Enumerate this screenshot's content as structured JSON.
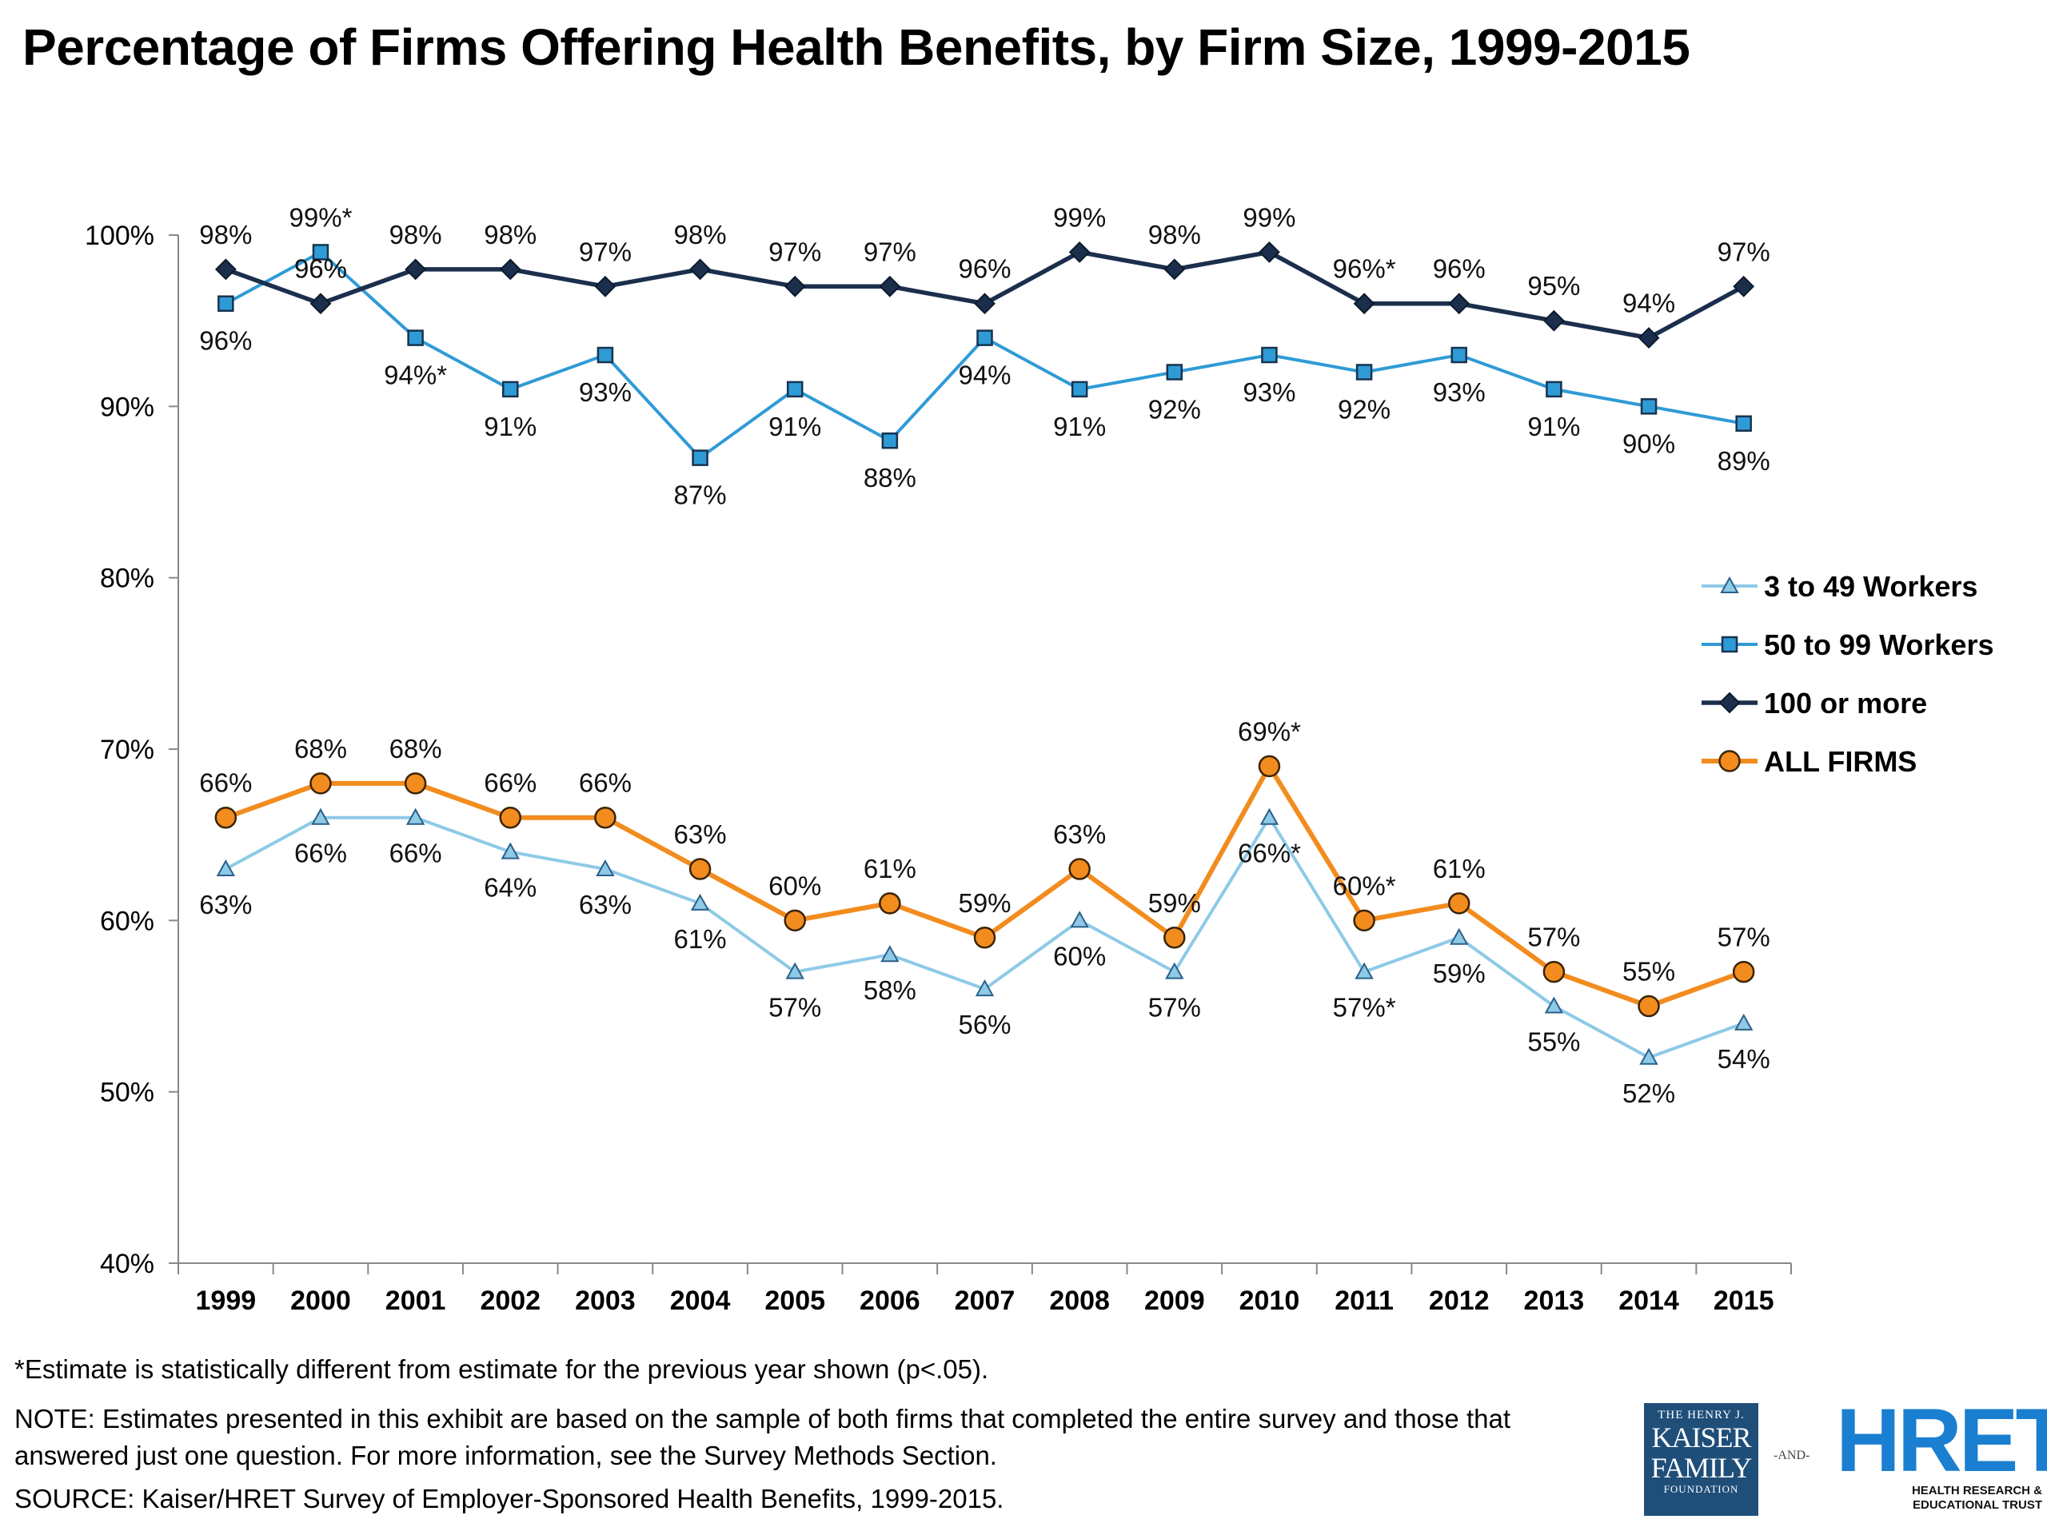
{
  "title": "Percentage of Firms Offering Health Benefits, by Firm Size, 1999-2015",
  "footnote": "*Estimate is statistically different from estimate for the previous year shown (p<.05).",
  "note": "NOTE: Estimates presented in this exhibit are based on the sample of both firms that completed the entire survey and those that answered just one question. For more information, see the Survey Methods Section.",
  "source": "SOURCE:  Kaiser/HRET Survey of Employer-Sponsored Health Benefits, 1999-2015.",
  "logos": {
    "kff_line1": "THE HENRY J.",
    "kff_line2": "KAISER",
    "kff_line3": "FAMILY",
    "kff_line4": "FOUNDATION",
    "and": "-AND-",
    "hret_big": "HRET",
    "hret_line1": "HEALTH RESEARCH &",
    "hret_line2": "EDUCATIONAL TRUST"
  },
  "chart_data": {
    "type": "line",
    "title": "Percentage of Firms Offering Health Benefits, by Firm Size, 1999-2015",
    "xlabel": "",
    "ylabel": "",
    "categories": [
      "1999",
      "2000",
      "2001",
      "2002",
      "2003",
      "2004",
      "2005",
      "2006",
      "2007",
      "2008",
      "2009",
      "2010",
      "2011",
      "2012",
      "2013",
      "2014",
      "2015"
    ],
    "ylim": [
      40,
      100
    ],
    "yticks": [
      {
        "value": 100,
        "label": "100%"
      },
      {
        "value": 90,
        "label": "90%"
      },
      {
        "value": 80,
        "label": "80%"
      },
      {
        "value": 70,
        "label": "70%"
      },
      {
        "value": 60,
        "label": "60%"
      },
      {
        "value": 50,
        "label": "50%"
      },
      {
        "value": 40,
        "label": "40%"
      }
    ],
    "grid": false,
    "legend_position": "right",
    "series": [
      {
        "name": "3 to 49 Workers",
        "color": "#8ecae6",
        "marker": "triangle",
        "label_side": "below",
        "values": [
          63,
          66,
          66,
          64,
          63,
          61,
          57,
          58,
          56,
          60,
          57,
          66,
          57,
          59,
          55,
          52,
          54
        ],
        "labels": [
          "63%",
          "66%",
          "66%",
          "64%",
          "63%",
          "61%",
          "57%",
          "58%",
          "56%",
          "60%",
          "57%",
          "66%*",
          "57%*",
          "59%",
          "55%",
          "52%",
          "54%"
        ]
      },
      {
        "name": "50 to 99 Workers",
        "color": "#2f9bd6",
        "marker": "square",
        "label_side": "mixed",
        "values": [
          96,
          99,
          94,
          91,
          93,
          87,
          91,
          88,
          94,
          91,
          92,
          93,
          92,
          93,
          91,
          90,
          89
        ],
        "labels": [
          "96%",
          "99%*",
          "94%*",
          "91%",
          "93%",
          "87%",
          "91%",
          "88%",
          "94%",
          "91%",
          "92%",
          "93%",
          "92%",
          "93%",
          "91%",
          "90%",
          "89%"
        ]
      },
      {
        "name": "100 or more",
        "color": "#1b2f4d",
        "marker": "diamond",
        "label_side": "above",
        "values": [
          98,
          96,
          98,
          98,
          97,
          98,
          97,
          97,
          96,
          99,
          98,
          99,
          96,
          96,
          95,
          94,
          97
        ],
        "labels": [
          "98%",
          "96%",
          "98%",
          "98%",
          "97%",
          "98%",
          "97%",
          "97%",
          "96%",
          "99%",
          "98%",
          "99%",
          "96%*",
          "96%",
          "95%",
          "94%",
          "97%"
        ]
      },
      {
        "name": "ALL FIRMS",
        "color": "#f28c1e",
        "marker": "circle",
        "label_side": "above",
        "values": [
          66,
          68,
          68,
          66,
          66,
          63,
          60,
          61,
          59,
          63,
          59,
          69,
          60,
          61,
          57,
          55,
          57
        ],
        "labels": [
          "66%",
          "68%",
          "68%",
          "66%",
          "66%",
          "63%",
          "60%",
          "61%",
          "59%",
          "63%",
          "59%",
          "69%*",
          "60%*",
          "61%",
          "57%",
          "55%",
          "57%"
        ]
      }
    ]
  }
}
